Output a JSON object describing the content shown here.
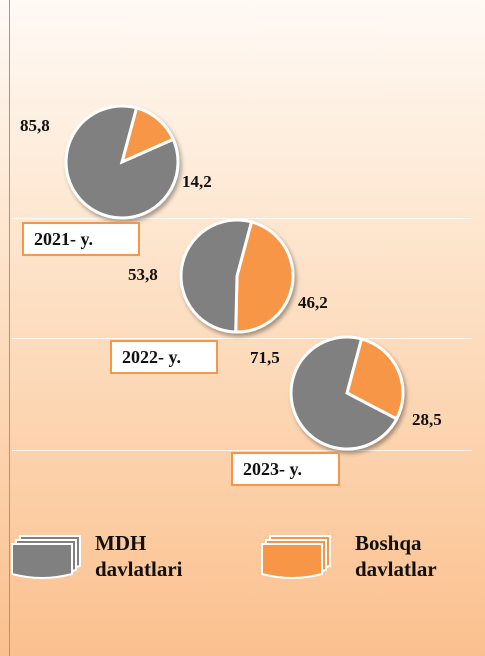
{
  "chart_data": [
    {
      "type": "pie",
      "title": "2021- y.",
      "categories": [
        "MDH davlatlari",
        "Boshqa davlatlar"
      ],
      "values": [
        85.8,
        14.2
      ],
      "value_labels": [
        "85,8",
        "14,2"
      ],
      "colors": [
        "#808080",
        "#f79646"
      ]
    },
    {
      "type": "pie",
      "title": "2022- y.",
      "categories": [
        "MDH davlatlari",
        "Boshqa davlatlar"
      ],
      "values": [
        53.8,
        46.2
      ],
      "value_labels": [
        "53,8",
        "46,2"
      ],
      "colors": [
        "#808080",
        "#f79646"
      ]
    },
    {
      "type": "pie",
      "title": "2023- y.",
      "categories": [
        "MDH davlatlari",
        "Boshqa davlatlar"
      ],
      "values": [
        71.5,
        28.5
      ],
      "value_labels": [
        "71,5",
        "28,5"
      ],
      "colors": [
        "#808080",
        "#f79646"
      ]
    }
  ]
}
